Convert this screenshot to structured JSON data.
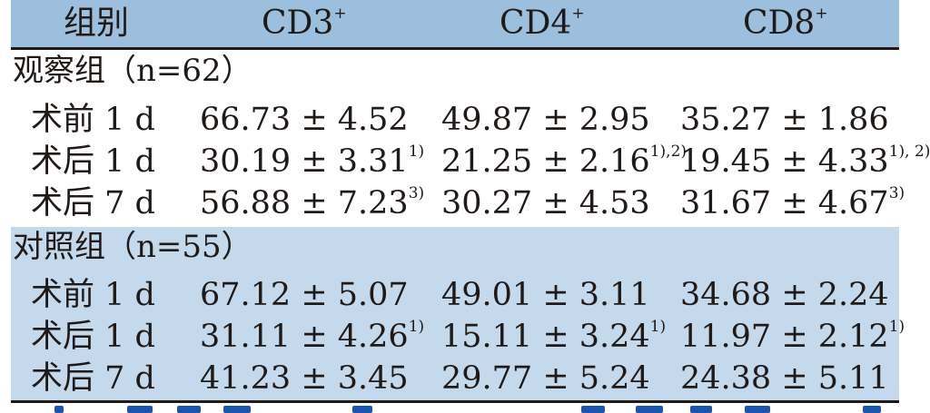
{
  "header": {
    "group": "组别",
    "cd3": "CD3",
    "cd4": "CD4",
    "cd8": "CD8",
    "sup": "+"
  },
  "groups": [
    {
      "label": "观察组（n=62）",
      "rows": [
        {
          "time": "术前 1 d",
          "cd3": "66.73 ± 4.52",
          "cd3_note": "",
          "cd4": "49.87 ± 2.95",
          "cd4_note": "",
          "cd8": "35.27 ± 1.86",
          "cd8_note": ""
        },
        {
          "time": "术后 1 d",
          "cd3": "30.19 ± 3.31",
          "cd3_note": "1)",
          "cd4": "21.25 ± 2.16",
          "cd4_note": "1),2)",
          "cd8": "19.45 ± 4.33",
          "cd8_note": "1), 2)"
        },
        {
          "time": "术后 7 d",
          "cd3": "56.88 ± 7.23",
          "cd3_note": "3)",
          "cd4": "30.27 ± 4.53",
          "cd4_note": "",
          "cd8": "31.67 ± 4.67",
          "cd8_note": "3)"
        }
      ]
    },
    {
      "label": "对照组（n=55）",
      "rows": [
        {
          "time": "术前 1 d",
          "cd3": "67.12 ± 5.07",
          "cd3_note": "",
          "cd4": "49.01 ± 3.11",
          "cd4_note": "",
          "cd8": "34.68 ± 2.24",
          "cd8_note": ""
        },
        {
          "time": "术后 1 d",
          "cd3": "31.11 ± 4.26",
          "cd3_note": "1)",
          "cd4": "15.11 ± 3.24",
          "cd4_note": "1)",
          "cd8": "11.97 ± 2.12",
          "cd8_note": "1)"
        },
        {
          "time": "术后 7 d",
          "cd3": "41.23 ± 3.45",
          "cd3_note": "",
          "cd4": "29.77 ± 5.24",
          "cd4_note": "",
          "cd8": "24.38 ± 5.11",
          "cd8_note": ""
        }
      ]
    }
  ],
  "colors": {
    "header_bg": "#9bbfdc",
    "control_band_bg": "#c5d9ec",
    "rule": "#1f1a17",
    "bleed_text": "#1a55b0"
  }
}
